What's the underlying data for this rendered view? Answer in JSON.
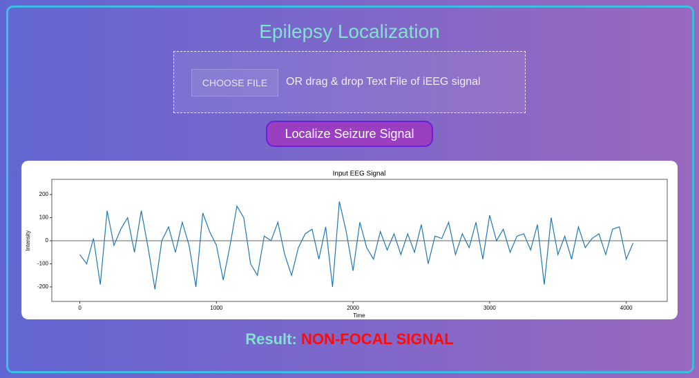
{
  "header": {
    "title": "Epilepsy Localization"
  },
  "upload": {
    "button": "CHOOSE FILE",
    "hint": "OR drag & drop Text File of iEEG signal"
  },
  "action": {
    "button": "Localize Seizure Signal"
  },
  "chart_data": {
    "type": "line",
    "title": "Input EEG Signal",
    "x_label": "Time",
    "y_label": "Intensity",
    "color": "#1f77b4",
    "x": [
      0,
      50,
      100,
      150,
      200,
      250,
      300,
      350,
      400,
      450,
      500,
      550,
      600,
      650,
      700,
      750,
      800,
      850,
      900,
      950,
      1000,
      1050,
      1100,
      1150,
      1200,
      1250,
      1300,
      1350,
      1400,
      1450,
      1500,
      1550,
      1600,
      1650,
      1700,
      1750,
      1800,
      1850,
      1900,
      1950,
      2000,
      2050,
      2100,
      2150,
      2200,
      2250,
      2300,
      2350,
      2400,
      2450,
      2500,
      2550,
      2600,
      2650,
      2700,
      2750,
      2800,
      2850,
      2900,
      2950,
      3000,
      3050,
      3100,
      3150,
      3200,
      3250,
      3300,
      3350,
      3400,
      3450,
      3500,
      3550,
      3600,
      3650,
      3700,
      3750,
      3800,
      3850,
      3900,
      3950,
      4000,
      4050
    ],
    "values": [
      -60,
      -100,
      10,
      -190,
      130,
      -20,
      50,
      100,
      -50,
      130,
      -30,
      -210,
      0,
      60,
      -50,
      80,
      -20,
      -200,
      120,
      40,
      -20,
      -170,
      -20,
      150,
      100,
      -100,
      -150,
      20,
      0,
      80,
      -60,
      -150,
      -30,
      30,
      50,
      -80,
      60,
      -200,
      170,
      40,
      -130,
      80,
      -30,
      -80,
      40,
      -40,
      30,
      -60,
      30,
      -50,
      70,
      -100,
      20,
      10,
      80,
      -60,
      30,
      -30,
      80,
      -80,
      110,
      0,
      50,
      -50,
      20,
      30,
      -40,
      70,
      -190,
      100,
      -60,
      20,
      -80,
      60,
      -30,
      10,
      30,
      -60,
      50,
      60,
      -80,
      -10
    ],
    "xlim": [
      -205,
      4300
    ],
    "ylim": [
      -263,
      266
    ],
    "xticks": [
      0,
      1000,
      2000,
      3000,
      4000
    ],
    "yticks": [
      -200,
      -100,
      0,
      100,
      200
    ]
  },
  "result": {
    "label": "Result:",
    "value": "NON-FOCAL SIGNAL"
  }
}
